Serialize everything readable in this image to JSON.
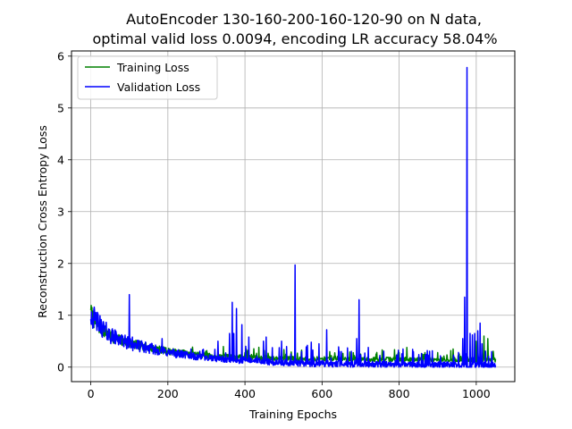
{
  "chart_data": {
    "type": "line",
    "title": [
      "AutoEncoder 130-160-200-160-120-90 on N data,",
      "optimal valid loss 0.0094, encoding LR accuracy 58.04%"
    ],
    "xlabel": "Training Epochs",
    "ylabel": "Reconstruction Cross Entropy Loss",
    "xlim": [
      -50,
      1100
    ],
    "ylim": [
      -0.28,
      6.1
    ],
    "xticks": [
      0,
      200,
      400,
      600,
      800,
      1000
    ],
    "yticks": [
      0,
      1,
      2,
      3,
      4,
      5,
      6
    ],
    "grid": true,
    "legend_position": "top-left",
    "series": [
      {
        "name": "Training Loss",
        "color": "#008000",
        "baseline": [
          [
            0,
            0.98
          ],
          [
            10,
            0.8
          ],
          [
            50,
            0.55
          ],
          [
            100,
            0.42
          ],
          [
            200,
            0.28
          ],
          [
            300,
            0.2
          ],
          [
            400,
            0.17
          ],
          [
            500,
            0.15
          ],
          [
            600,
            0.14
          ],
          [
            800,
            0.13
          ],
          [
            1050,
            0.12
          ]
        ],
        "spikes": [
          [
            0,
            1.1
          ],
          [
            20,
            0.78
          ],
          [
            60,
            0.58
          ],
          [
            180,
            0.38
          ],
          [
            300,
            0.3
          ],
          [
            400,
            0.28
          ],
          [
            450,
            0.32
          ],
          [
            530,
            0.3
          ],
          [
            620,
            0.3
          ],
          [
            700,
            0.25
          ],
          [
            740,
            0.25
          ],
          [
            800,
            0.28
          ],
          [
            820,
            0.38
          ],
          [
            860,
            0.25
          ],
          [
            900,
            0.28
          ],
          [
            940,
            0.35
          ],
          [
            1000,
            0.5
          ],
          [
            1020,
            0.6
          ],
          [
            1030,
            0.55
          ],
          [
            1045,
            0.22
          ]
        ]
      },
      {
        "name": "Validation Loss",
        "color": "#0000ff",
        "baseline": [
          [
            0,
            0.95
          ],
          [
            10,
            0.82
          ],
          [
            50,
            0.55
          ],
          [
            100,
            0.4
          ],
          [
            200,
            0.25
          ],
          [
            300,
            0.15
          ],
          [
            400,
            0.1
          ],
          [
            500,
            0.06
          ],
          [
            600,
            0.04
          ],
          [
            800,
            0.02
          ],
          [
            1050,
            0.01
          ]
        ],
        "spikes": [
          [
            15,
            0.8
          ],
          [
            25,
            0.72
          ],
          [
            70,
            0.6
          ],
          [
            100,
            1.4
          ],
          [
            108,
            0.58
          ],
          [
            185,
            0.55
          ],
          [
            260,
            0.35
          ],
          [
            290,
            0.33
          ],
          [
            330,
            0.5
          ],
          [
            360,
            0.65
          ],
          [
            367,
            1.25
          ],
          [
            371,
            0.65
          ],
          [
            378,
            1.13
          ],
          [
            392,
            0.82
          ],
          [
            410,
            0.58
          ],
          [
            448,
            0.5
          ],
          [
            455,
            0.58
          ],
          [
            495,
            0.5
          ],
          [
            530,
            1.97
          ],
          [
            562,
            0.42
          ],
          [
            572,
            0.48
          ],
          [
            592,
            0.45
          ],
          [
            612,
            0.72
          ],
          [
            650,
            0.3
          ],
          [
            690,
            0.55
          ],
          [
            696,
            1.3
          ],
          [
            720,
            0.38
          ],
          [
            810,
            0.35
          ],
          [
            965,
            0.55
          ],
          [
            970,
            1.35
          ],
          [
            976,
            5.78
          ],
          [
            984,
            0.65
          ],
          [
            990,
            0.62
          ],
          [
            996,
            0.65
          ],
          [
            1004,
            0.7
          ],
          [
            1010,
            0.85
          ],
          [
            1015,
            0.45
          ],
          [
            1040,
            0.3
          ]
        ]
      }
    ]
  }
}
